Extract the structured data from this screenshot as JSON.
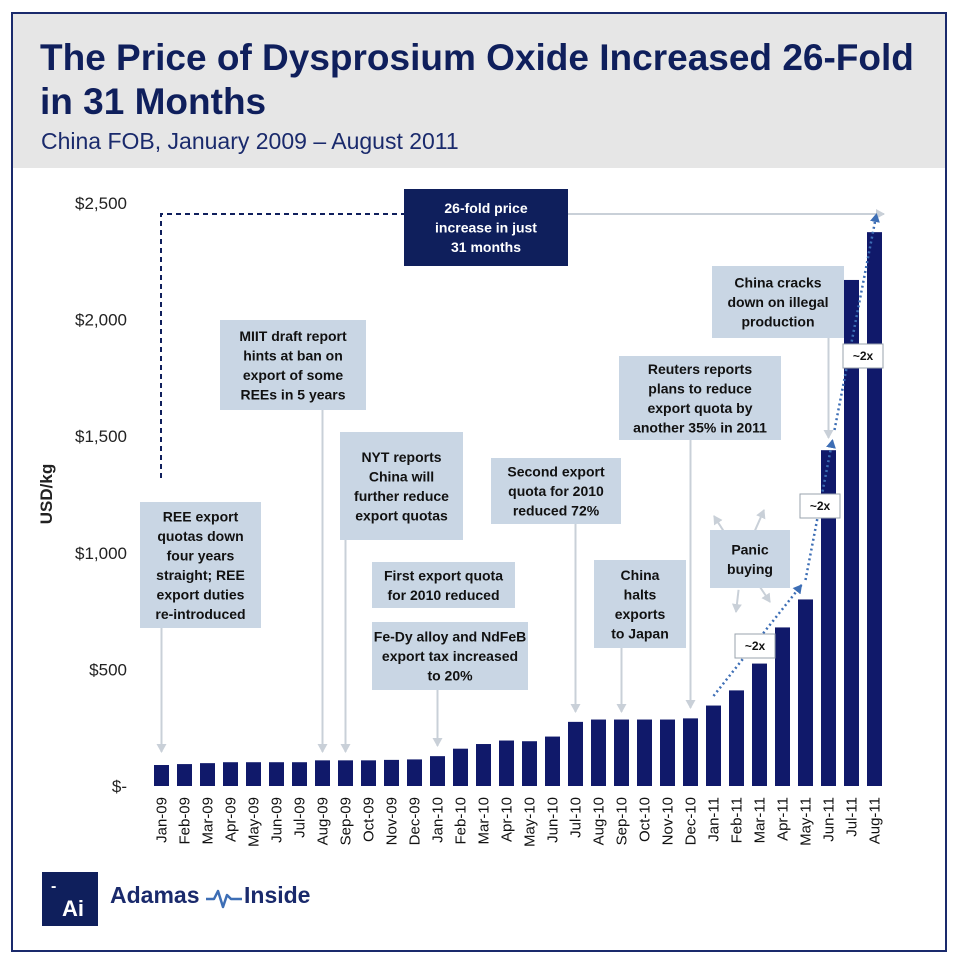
{
  "header": {
    "title": "The Price of Dysprosium Oxide Increased 26-Fold in 31 Months",
    "subtitle": "China FOB, January 2009 – August 2011"
  },
  "colors": {
    "bar": "#10196a",
    "annotation_fill": "#c9d6e4",
    "dark_box": "#0f1f5c",
    "header_bg": "#e6e6e6",
    "arrow": "#c9d0d8",
    "trend": "#3d6eb5"
  },
  "chart_data": {
    "type": "bar",
    "title": "The Price of Dysprosium Oxide Increased 26-Fold in 31 Months",
    "subtitle": "China FOB, January 2009 – August 2011",
    "xlabel": "",
    "ylabel": "USD/kg",
    "ylim": [
      0,
      2500
    ],
    "yticks": [
      0,
      500,
      1000,
      1500,
      2000,
      2500
    ],
    "ytick_labels": [
      "$-",
      "$500",
      "$1,000",
      "$1,500",
      "$2,000",
      "$2,500"
    ],
    "categories": [
      "Jan-09",
      "Feb-09",
      "Mar-09",
      "Apr-09",
      "May-09",
      "Jun-09",
      "Jul-09",
      "Aug-09",
      "Sep-09",
      "Oct-09",
      "Nov-09",
      "Dec-09",
      "Jan-10",
      "Feb-10",
      "Mar-10",
      "Apr-10",
      "May-10",
      "Jun-10",
      "Jul-10",
      "Aug-10",
      "Sep-10",
      "Oct-10",
      "Nov-10",
      "Dec-10",
      "Jan-11",
      "Feb-11",
      "Mar-11",
      "Apr-11",
      "May-11",
      "Jun-11",
      "Jul-11",
      "Aug-11"
    ],
    "values": [
      90,
      94,
      98,
      102,
      102,
      102,
      102,
      110,
      110,
      110,
      112,
      114,
      128,
      160,
      180,
      195,
      192,
      212,
      275,
      285,
      285,
      285,
      285,
      290,
      345,
      410,
      525,
      680,
      800,
      1440,
      2170,
      2375
    ],
    "annotations": [
      {
        "text": "REE export quotas down four years straight; REE export duties re-introduced",
        "category": "Jan-09"
      },
      {
        "text": "MIIT draft report hints at ban on export of some REEs in 5 years",
        "category": "Aug-09"
      },
      {
        "text": "NYT reports China will further reduce export quotas",
        "category": "Sep-09"
      },
      {
        "text": "First export quota for 2010 reduced",
        "category": "Jan-10"
      },
      {
        "text": "Fe-Dy alloy and NdFeB export tax increased to 20%",
        "category": "Jan-10"
      },
      {
        "text": "Second export quota for 2010 reduced 72%",
        "category": "Jul-10"
      },
      {
        "text": "China halts exports to Japan",
        "category": "Sep-10"
      },
      {
        "text": "Reuters reports plans to reduce export quota by another 35% in 2011",
        "category": "Dec-10"
      },
      {
        "text": "China cracks down on illegal production",
        "category": "Jun-11"
      },
      {
        "text": "Panic buying",
        "category": "Apr-11"
      }
    ],
    "headline_box": "26-fold price increase in just 31 months",
    "multipliers": [
      "~2x",
      "~2x",
      "~2x"
    ]
  },
  "footer": {
    "logo_dash": "-",
    "logo_text": "Ai",
    "brand_left": "Adamas",
    "brand_right": "Inside"
  }
}
